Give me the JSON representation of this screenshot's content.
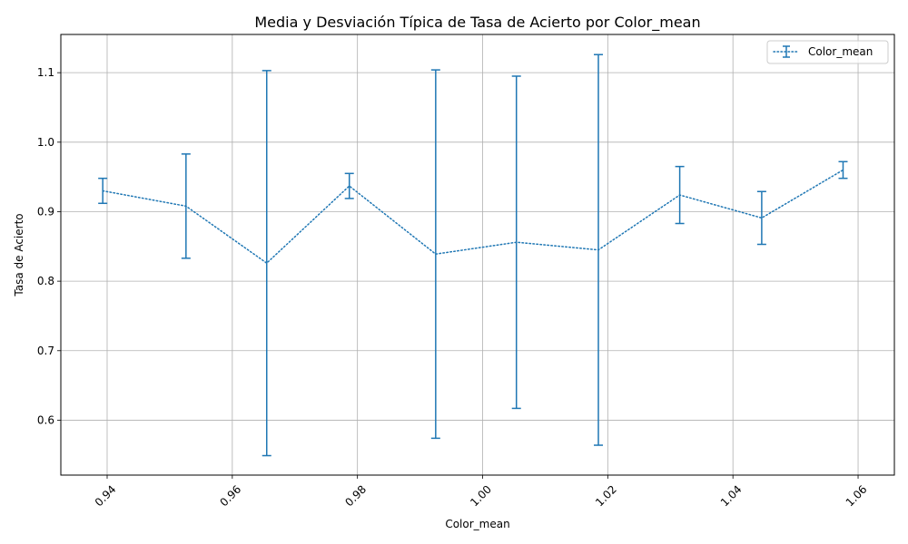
{
  "chart_data": {
    "type": "line",
    "title": "Media y Desviación Típica de Tasa de Acierto por Color_mean",
    "xlabel": "Color_mean",
    "ylabel": "Tasa de Acierto",
    "xlim": [
      0.9326,
      1.0658
    ],
    "ylim": [
      0.521,
      1.155
    ],
    "grid": true,
    "legend_position": "top-right",
    "x_ticks": [
      0.94,
      0.96,
      0.98,
      1.0,
      1.02,
      1.04,
      1.06
    ],
    "x_tick_labels": [
      "0.94",
      "0.96",
      "0.98",
      "1.00",
      "1.02",
      "1.04",
      "1.06"
    ],
    "x_tick_rotation": 45,
    "y_ticks": [
      0.6,
      0.7,
      0.8,
      0.9,
      1.0,
      1.1
    ],
    "y_tick_labels": [
      "0.6",
      "0.7",
      "0.8",
      "0.9",
      "1.0",
      "1.1"
    ],
    "series": [
      {
        "name": "Color_mean",
        "color": "#1f77b4",
        "line_style": "dotted",
        "x": [
          0.9393,
          0.9526,
          0.9655,
          0.9787,
          0.9925,
          1.0054,
          1.0185,
          1.0315,
          1.0446,
          1.0576
        ],
        "y": [
          0.93,
          0.908,
          0.826,
          0.937,
          0.839,
          0.856,
          0.845,
          0.924,
          0.891,
          0.96
        ],
        "err": [
          0.018,
          0.075,
          0.277,
          0.018,
          0.265,
          0.239,
          0.281,
          0.041,
          0.038,
          0.012
        ]
      }
    ]
  }
}
